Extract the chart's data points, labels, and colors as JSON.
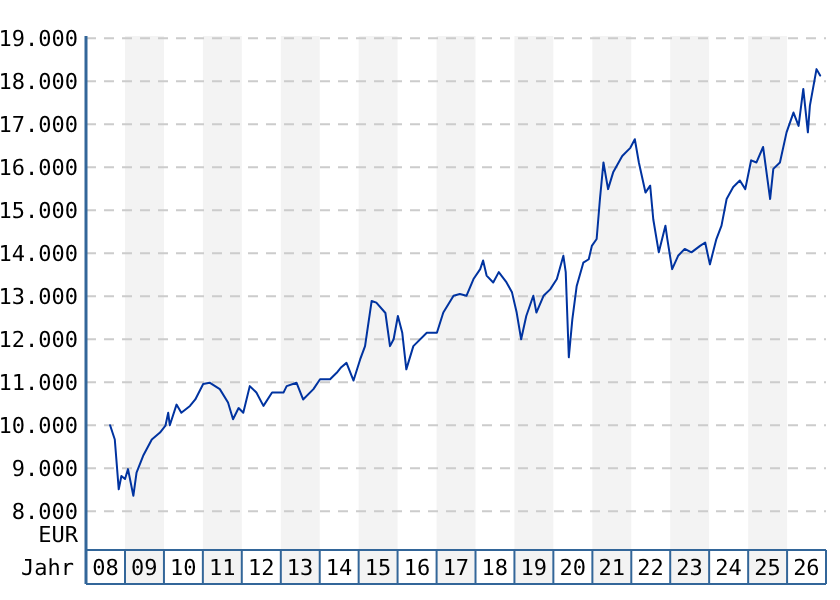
{
  "chart_data": {
    "type": "line",
    "xlabel": "Jahr",
    "ylabel": "EUR",
    "xlim": [
      "2008-01-01",
      "2027-01-01"
    ],
    "ylim": [
      7100,
      19050
    ],
    "xticks": [
      {
        "value": "2008-07-01",
        "label": "08"
      },
      {
        "value": "2009-07-01",
        "label": "09"
      },
      {
        "value": "2010-07-01",
        "label": "10"
      },
      {
        "value": "2011-07-01",
        "label": "11"
      },
      {
        "value": "2012-07-01",
        "label": "12"
      },
      {
        "value": "2013-07-01",
        "label": "13"
      },
      {
        "value": "2014-07-01",
        "label": "14"
      },
      {
        "value": "2015-07-01",
        "label": "15"
      },
      {
        "value": "2016-07-01",
        "label": "16"
      },
      {
        "value": "2017-07-01",
        "label": "17"
      },
      {
        "value": "2018-07-01",
        "label": "18"
      },
      {
        "value": "2019-07-01",
        "label": "19"
      },
      {
        "value": "2020-07-01",
        "label": "20"
      },
      {
        "value": "2021-07-01",
        "label": "21"
      },
      {
        "value": "2022-07-01",
        "label": "22"
      },
      {
        "value": "2023-07-01",
        "label": "23"
      },
      {
        "value": "2024-07-01",
        "label": "24"
      },
      {
        "value": "2025-07-01",
        "label": "25"
      },
      {
        "value": "2026-07-01",
        "label": "26"
      }
    ],
    "yticks": [
      {
        "value": 8000,
        "label": "8.000"
      },
      {
        "value": 9000,
        "label": "9.000"
      },
      {
        "value": 10000,
        "label": "10.000"
      },
      {
        "value": 11000,
        "label": "11.000"
      },
      {
        "value": 12000,
        "label": "12.000"
      },
      {
        "value": 13000,
        "label": "13.000"
      },
      {
        "value": 14000,
        "label": "14.000"
      },
      {
        "value": 15000,
        "label": "15.000"
      },
      {
        "value": 16000,
        "label": "16.000"
      },
      {
        "value": 17000,
        "label": "17.000"
      },
      {
        "value": 18000,
        "label": "18.000"
      },
      {
        "value": 19000,
        "label": "19.000"
      }
    ],
    "grid": "y",
    "line_style": "solid",
    "bands": [
      {
        "axis": "x",
        "from": "2009-01-01",
        "to": "2010-01-01",
        "color": "#f3f3f3"
      },
      {
        "axis": "x",
        "from": "2011-01-01",
        "to": "2012-01-01",
        "color": "#f3f3f3"
      },
      {
        "axis": "x",
        "from": "2013-01-01",
        "to": "2014-01-01",
        "color": "#f3f3f3"
      },
      {
        "axis": "x",
        "from": "2015-01-01",
        "to": "2016-01-01",
        "color": "#f3f3f3"
      },
      {
        "axis": "x",
        "from": "2017-01-01",
        "to": "2018-01-01",
        "color": "#f3f3f3"
      },
      {
        "axis": "x",
        "from": "2019-01-01",
        "to": "2020-01-01",
        "color": "#f3f3f3"
      },
      {
        "axis": "x",
        "from": "2021-01-01",
        "to": "2022-01-01",
        "color": "#f3f3f3"
      },
      {
        "axis": "x",
        "from": "2023-01-01",
        "to": "2024-01-01",
        "color": "#f3f3f3"
      },
      {
        "axis": "x",
        "from": "2025-01-01",
        "to": "2026-01-01",
        "color": "#f3f3f3"
      }
    ],
    "series": [
      {
        "color": "#0033a0",
        "x": [
          "2008-08-14",
          "2008-09-27",
          "2008-11-03",
          "2008-11-28",
          "2009-01-01",
          "2009-01-29",
          "2009-03-20",
          "2009-04-19",
          "2009-06-20",
          "2009-09-09",
          "2009-11-25",
          "2010-01-15",
          "2010-02-10",
          "2010-02-25",
          "2010-04-29",
          "2010-06-13",
          "2010-09-02",
          "2010-10-22",
          "2011-01-04",
          "2011-03-05",
          "2011-06-09",
          "2011-08-25",
          "2011-10-11",
          "2011-12-02",
          "2012-01-15",
          "2012-03-16",
          "2012-05-17",
          "2012-07-22",
          "2012-10-11",
          "2013-01-26",
          "2013-02-25",
          "2013-05-28",
          "2013-07-29",
          "2013-11-03",
          "2014-01-04",
          "2014-04-08",
          "2014-06-09",
          "2014-07-22",
          "2014-09-09",
          "2014-11-14",
          "2015-01-15",
          "2015-03-02",
          "2015-05-03",
          "2015-06-16",
          "2015-09-09",
          "2015-10-22",
          "2015-11-25",
          "2016-01-04",
          "2016-02-14",
          "2016-03-23",
          "2016-05-28",
          "2016-10-01",
          "2017-01-04",
          "2017-03-05",
          "2017-06-09",
          "2017-08-07",
          "2017-10-08",
          "2017-12-13",
          "2018-02-14",
          "2018-03-13",
          "2018-04-15",
          "2018-06-16",
          "2018-08-07",
          "2018-10-19",
          "2018-12-09",
          "2019-01-22",
          "2019-03-05",
          "2019-04-22",
          "2019-06-27",
          "2019-07-26",
          "2019-10-01",
          "2019-12-02",
          "2020-02-03",
          "2020-04-04",
          "2020-04-26",
          "2020-05-25",
          "2020-06-27",
          "2020-08-07",
          "2020-10-08",
          "2020-11-28",
          "2020-12-27",
          "2021-02-10",
          "2021-03-13",
          "2021-04-15",
          "2021-05-28",
          "2021-07-15",
          "2021-10-08",
          "2021-12-23",
          "2022-02-03",
          "2022-03-13",
          "2022-05-14",
          "2022-06-27",
          "2022-07-26",
          "2022-09-16",
          "2022-11-17",
          "2022-12-05",
          "2023-01-19",
          "2023-03-16",
          "2023-05-17",
          "2023-07-19",
          "2023-10-08",
          "2023-11-25",
          "2024-01-08",
          "2024-03-09",
          "2024-04-26",
          "2024-06-13",
          "2024-08-14",
          "2024-10-15",
          "2024-12-05",
          "2025-01-29",
          "2025-03-20",
          "2025-05-21",
          "2025-07-26",
          "2025-08-25",
          "2025-10-26",
          "2025-12-27",
          "2026-03-02",
          "2026-04-19",
          "2026-06-02",
          "2026-07-15",
          "2026-08-03",
          "2026-10-04",
          "2026-11-07"
        ],
        "values": [
          10000,
          9670,
          8510,
          8820,
          8750,
          8980,
          8360,
          8900,
          9290,
          9670,
          9830,
          9990,
          10290,
          10000,
          10480,
          10290,
          10450,
          10600,
          10960,
          10990,
          10840,
          10530,
          10140,
          10400,
          10290,
          10910,
          10760,
          10450,
          10760,
          10760,
          10910,
          10990,
          10600,
          10840,
          11070,
          11070,
          11220,
          11350,
          11450,
          11040,
          11530,
          11840,
          12890,
          12850,
          12610,
          11840,
          12000,
          12540,
          12150,
          11300,
          11840,
          12150,
          12150,
          12620,
          13010,
          13050,
          13010,
          13400,
          13630,
          13830,
          13480,
          13320,
          13560,
          13320,
          13090,
          12620,
          12000,
          12540,
          13010,
          12620,
          13010,
          13160,
          13400,
          13940,
          13560,
          11580,
          12460,
          13240,
          13780,
          13860,
          14170,
          14330,
          15260,
          16110,
          15490,
          15880,
          16260,
          16450,
          16650,
          16110,
          15410,
          15570,
          14790,
          14020,
          14640,
          14330,
          13630,
          13940,
          14100,
          14020,
          14170,
          14250,
          13740,
          14330,
          14640,
          15260,
          15540,
          15690,
          15490,
          16160,
          16110,
          16470,
          15260,
          15960,
          16110,
          16810,
          17270,
          16960,
          17820,
          16810,
          17430,
          18280,
          18130
        ]
      }
    ]
  }
}
